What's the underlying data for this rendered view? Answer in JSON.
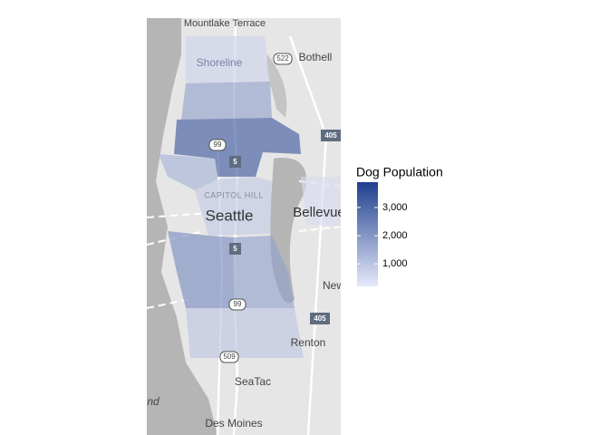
{
  "chart_data": {
    "type": "choropleth",
    "legend_title": "Dog Population",
    "clim": [
      200,
      3900
    ],
    "ticks": [
      {
        "value": 1000,
        "label": "1,000"
      },
      {
        "value": 2000,
        "label": "2,000"
      },
      {
        "value": 3000,
        "label": "3,000"
      }
    ],
    "color_low": "#e6e9f8",
    "color_high": "#1f3f8e",
    "region_values": [
      700,
      1800,
      3400,
      1400,
      900,
      2300,
      1800,
      1000,
      500
    ],
    "map_labels": [
      "Mountlake Terrace",
      "Shoreline",
      "Bothell",
      "522",
      "99",
      "5",
      "405",
      "CAPITOL HILL",
      "Seattle",
      "Bellevue",
      "5",
      "New",
      "99",
      "405",
      "Renton",
      "509",
      "SeaTac",
      "nd",
      "Des Moines"
    ]
  }
}
